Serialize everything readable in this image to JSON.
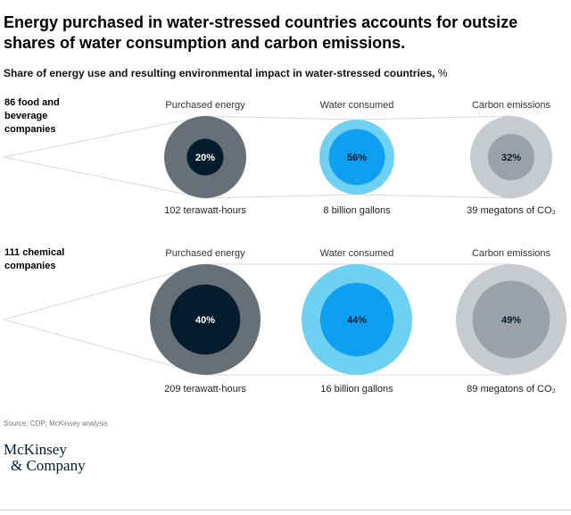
{
  "header": {
    "title": "Energy purchased in water-stressed countries accounts for outsize shares of water consumption and carbon emissions.",
    "subtitle": "Share of energy use and resulting environmental impact in water-stressed countries,",
    "subtitle_unit": "%"
  },
  "chart_data": {
    "type": "proportional-circles",
    "columns": [
      "Purchased energy",
      "Water consumed",
      "Carbon emissions"
    ],
    "groups": [
      {
        "label": "86 food and beverage companies",
        "items": [
          {
            "metric": "Purchased energy",
            "share_pct": 20,
            "share_label": "20%",
            "total_label": "102 terawatt-hours",
            "outer_color": "#676f78",
            "inner_color": "#051c2c",
            "text_color": "#ffffff"
          },
          {
            "metric": "Water consumed",
            "share_pct": 56,
            "share_label": "56%",
            "total_label": "8 billion gallons",
            "outer_color": "#6ed1f1",
            "inner_color": "#0f9ff0",
            "text_color": "#051c2c"
          },
          {
            "metric": "Carbon emissions",
            "share_pct": 32,
            "share_label": "32%",
            "total_label": "39 megatons of CO₂",
            "outer_color": "#c7cbd0",
            "inner_color": "#9ba1a8",
            "text_color": "#051c2c"
          }
        ]
      },
      {
        "label": "111 chemical companies",
        "items": [
          {
            "metric": "Purchased energy",
            "share_pct": 40,
            "share_label": "40%",
            "total_label": "209 terawatt-hours",
            "outer_color": "#676f78",
            "inner_color": "#051c2c",
            "text_color": "#ffffff"
          },
          {
            "metric": "Water consumed",
            "share_pct": 44,
            "share_label": "44%",
            "total_label": "16 billion gallons",
            "outer_color": "#6ed1f1",
            "inner_color": "#0f9ff0",
            "text_color": "#051c2c"
          },
          {
            "metric": "Carbon emissions",
            "share_pct": 49,
            "share_label": "49%",
            "total_label": "89 megatons of CO₂",
            "outer_color": "#c7cbd0",
            "inner_color": "#9ba1a8",
            "text_color": "#051c2c"
          }
        ]
      }
    ]
  },
  "footer": {
    "source": "Source: CDP; McKinsey analysis",
    "logo_line1": "McKinsey",
    "logo_line2": "& Company"
  }
}
